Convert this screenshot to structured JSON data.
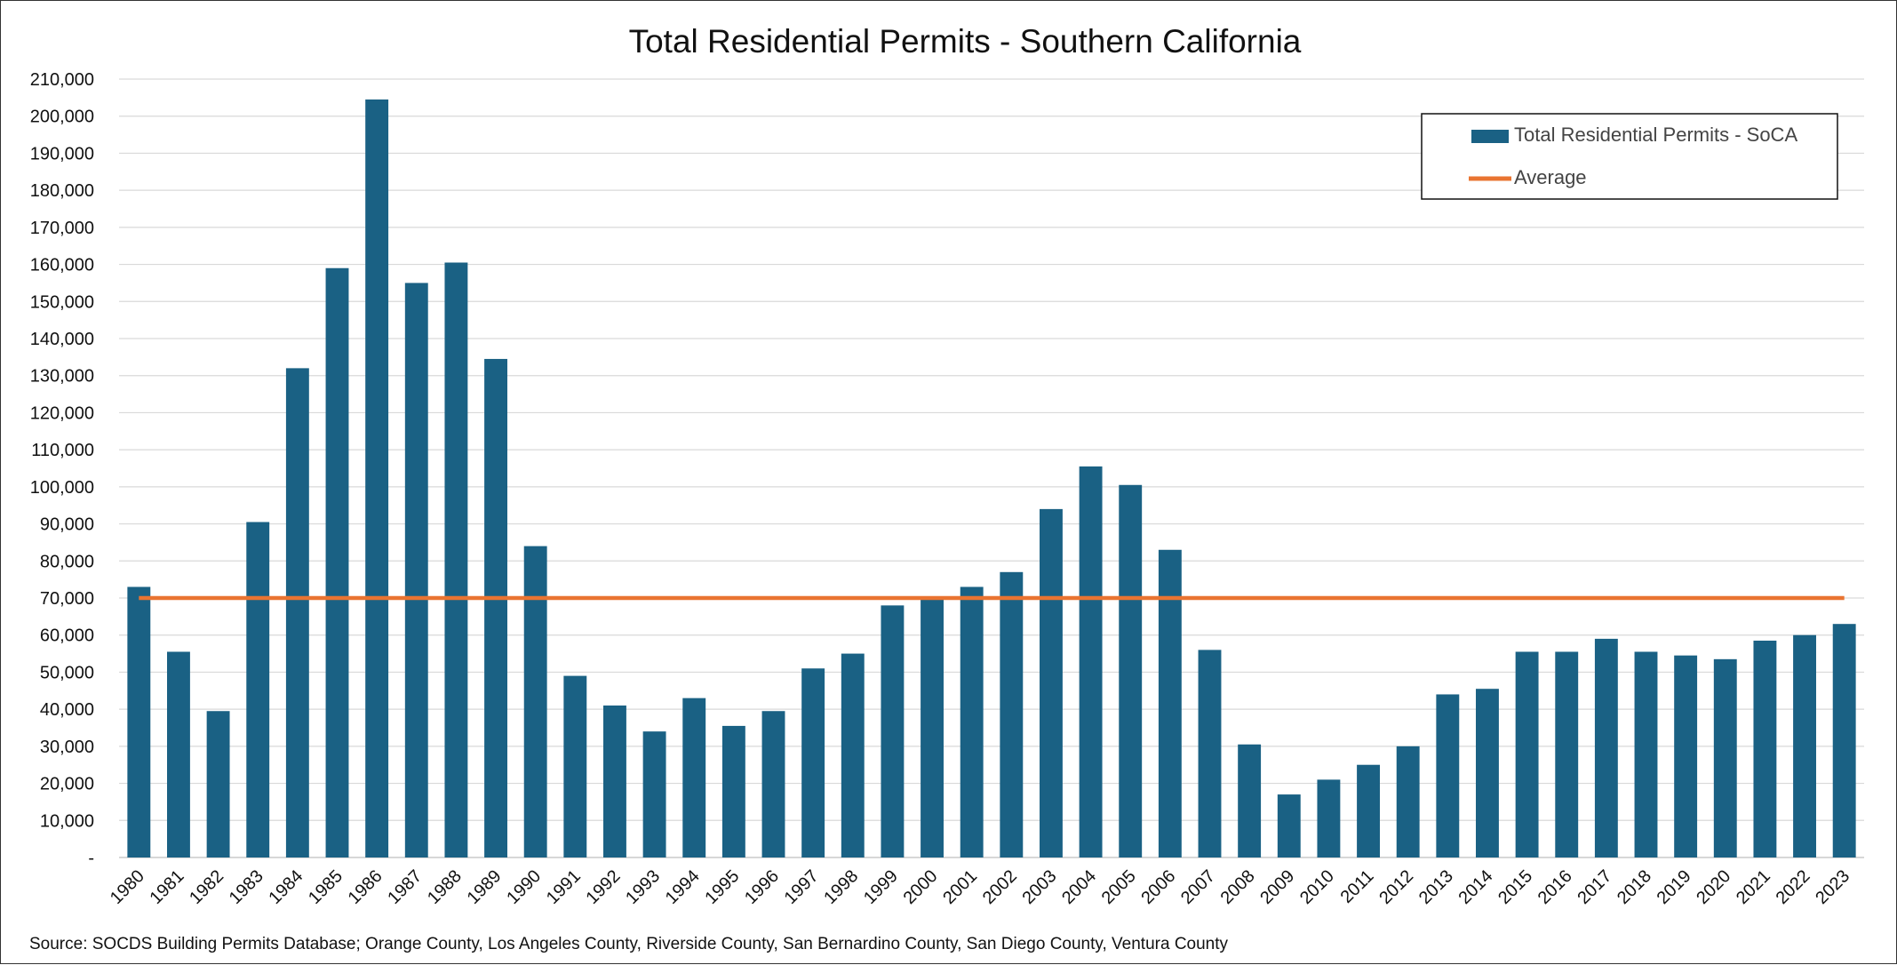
{
  "chart_data": {
    "type": "bar",
    "title": "Total Residential Permits - Southern California",
    "xlabel": "",
    "ylabel": "",
    "ylim": [
      0,
      210000
    ],
    "yticks": [
      0,
      10000,
      20000,
      30000,
      40000,
      50000,
      60000,
      70000,
      80000,
      90000,
      100000,
      110000,
      120000,
      130000,
      140000,
      150000,
      160000,
      170000,
      180000,
      190000,
      200000,
      210000
    ],
    "ytick_labels": [
      "-",
      "10,000",
      "20,000",
      "30,000",
      "40,000",
      "50,000",
      "60,000",
      "70,000",
      "80,000",
      "90,000",
      "100,000",
      "110,000",
      "120,000",
      "130,000",
      "140,000",
      "150,000",
      "160,000",
      "170,000",
      "180,000",
      "190,000",
      "200,000",
      "210,000"
    ],
    "grid": true,
    "legend_position": "top-right",
    "categories": [
      "1980",
      "1981",
      "1982",
      "1983",
      "1984",
      "1985",
      "1986",
      "1987",
      "1988",
      "1989",
      "1990",
      "1991",
      "1992",
      "1993",
      "1994",
      "1995",
      "1996",
      "1997",
      "1998",
      "1999",
      "2000",
      "2001",
      "2002",
      "2003",
      "2004",
      "2005",
      "2006",
      "2007",
      "2008",
      "2009",
      "2010",
      "2011",
      "2012",
      "2013",
      "2014",
      "2015",
      "2016",
      "2017",
      "2018",
      "2019",
      "2020",
      "2021",
      "2022",
      "2023"
    ],
    "series": [
      {
        "name": "Total Residential Permits - SoCA",
        "type": "bar",
        "color": "#1a6184",
        "values": [
          73000,
          55500,
          39500,
          90500,
          132000,
          159000,
          204500,
          155000,
          160500,
          134500,
          84000,
          49000,
          41000,
          34000,
          43000,
          35500,
          39500,
          51000,
          55000,
          68000,
          70000,
          73000,
          77000,
          94000,
          105500,
          100500,
          83000,
          56000,
          30500,
          17000,
          21000,
          25000,
          30000,
          44000,
          45500,
          55500,
          55500,
          59000,
          55500,
          54500,
          53500,
          58500,
          60000,
          63000
        ]
      },
      {
        "name": "Average",
        "type": "line",
        "color": "#e97431",
        "value": 70000
      }
    ],
    "source": "Source: SOCDS Building Permits Database; Orange County, Los Angeles County, Riverside County, San Bernardino County, San Diego County, Ventura County"
  }
}
